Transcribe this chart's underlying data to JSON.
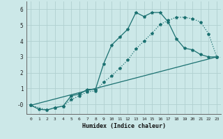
{
  "xlabel": "Humidex (Indice chaleur)",
  "xlim": [
    -0.5,
    23.5
  ],
  "ylim": [
    -0.6,
    6.5
  ],
  "ytick_vals": [
    0,
    1,
    2,
    3,
    4,
    5,
    6
  ],
  "ytick_labels": [
    "-0",
    "1",
    "2",
    "3",
    "4",
    "5",
    "6"
  ],
  "xtick_vals": [
    0,
    1,
    2,
    3,
    4,
    5,
    6,
    7,
    8,
    9,
    10,
    11,
    12,
    13,
    14,
    15,
    16,
    17,
    18,
    19,
    20,
    21,
    22,
    23
  ],
  "xtick_labels": [
    "0",
    "1",
    "2",
    "3",
    "4",
    "5",
    "6",
    "7",
    "8",
    "9",
    "10",
    "11",
    "12",
    "13",
    "14",
    "15",
    "16",
    "17",
    "18",
    "19",
    "20",
    "21",
    "22",
    "23"
  ],
  "background_color": "#cce8e8",
  "grid_color": "#b0d0d0",
  "line_color": "#1a7070",
  "line1_x": [
    0,
    1,
    2,
    3,
    4,
    5,
    6,
    7,
    8,
    9,
    10,
    11,
    12,
    13,
    14,
    15,
    16,
    17,
    18,
    19,
    20,
    21,
    22,
    23
  ],
  "line1_y": [
    -0.05,
    -0.3,
    -0.35,
    -0.2,
    -0.1,
    0.55,
    0.65,
    0.95,
    0.95,
    2.55,
    3.75,
    4.25,
    4.75,
    5.8,
    5.55,
    5.8,
    5.8,
    5.2,
    4.15,
    3.55,
    3.45,
    3.15,
    3.0,
    3.0
  ],
  "line2_x": [
    0,
    2,
    3,
    4,
    5,
    6,
    7,
    8,
    9,
    10,
    11,
    12,
    13,
    14,
    15,
    16,
    17,
    18,
    19,
    20,
    21,
    22,
    23
  ],
  "line2_y": [
    -0.05,
    -0.35,
    -0.2,
    -0.1,
    0.3,
    0.55,
    0.8,
    0.85,
    1.4,
    1.8,
    2.3,
    2.8,
    3.5,
    4.0,
    4.5,
    5.05,
    5.3,
    5.5,
    5.5,
    5.4,
    5.2,
    4.45,
    3.0
  ],
  "line3_x": [
    0,
    23
  ],
  "line3_y": [
    -0.05,
    3.0
  ],
  "marker": "*",
  "markersize": 3.0,
  "linewidth": 0.9
}
